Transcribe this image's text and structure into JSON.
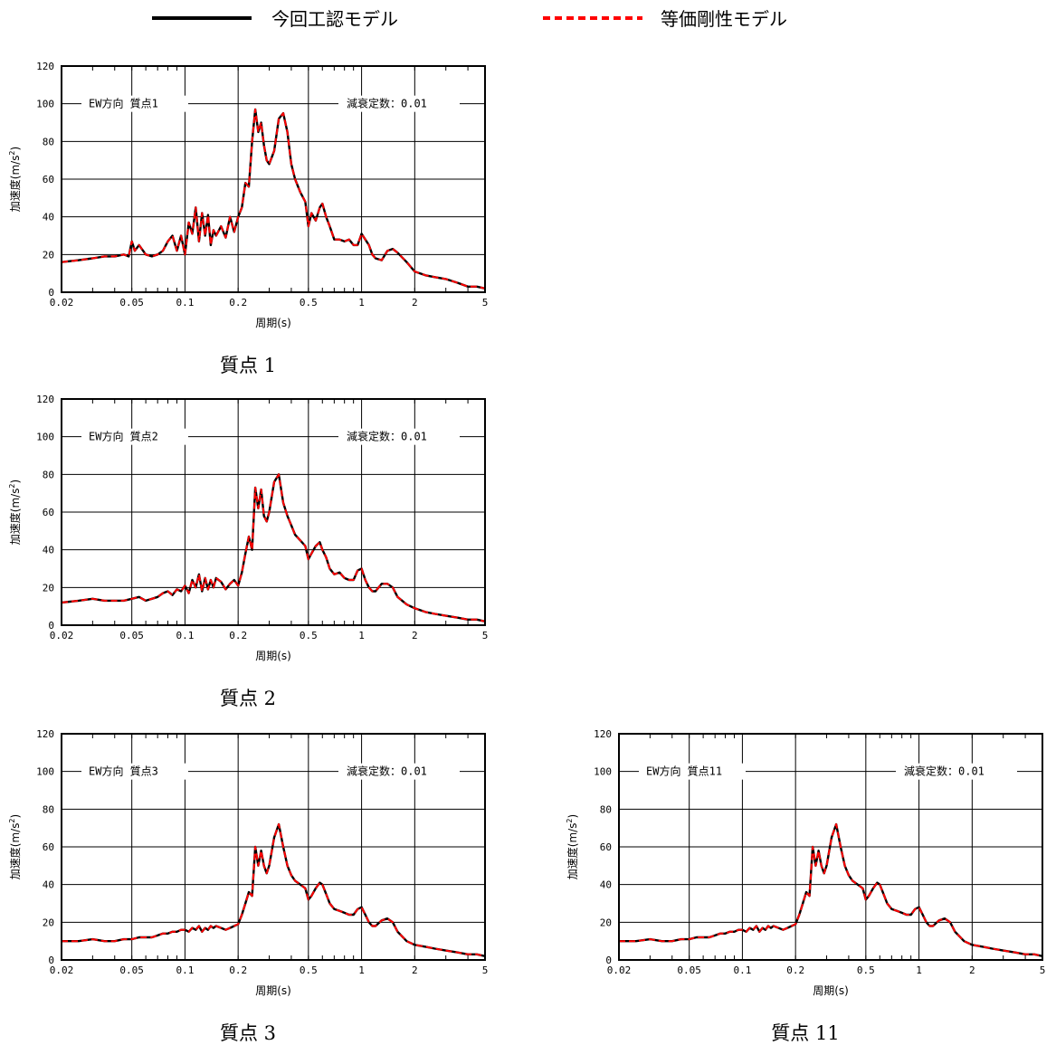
{
  "legend": {
    "model_a": {
      "label": "今回工認モデル",
      "color": "#000000",
      "style": "solid"
    },
    "model_b": {
      "label": "等価剛性モデル",
      "color": "#ff0000",
      "style": "dashed"
    }
  },
  "x_axis": {
    "label": "周期(s)",
    "scale": "log",
    "range": [
      0.02,
      5
    ],
    "ticks": [
      {
        "v": 0.02,
        "t": "0.02"
      },
      {
        "v": 0.05,
        "t": "0.05"
      },
      {
        "v": 0.1,
        "t": "0.1"
      },
      {
        "v": 0.2,
        "t": "0.2"
      },
      {
        "v": 0.5,
        "t": "0.5"
      },
      {
        "v": 1,
        "t": "1"
      },
      {
        "v": 2,
        "t": "2"
      },
      {
        "v": 5,
        "t": "5"
      }
    ]
  },
  "y_axis": {
    "label_main": "加速度(m/s",
    "label_sup": "2",
    "label_close": ")",
    "range": [
      0,
      120
    ],
    "ticks": [
      "0",
      "20",
      "40",
      "60",
      "80",
      "100",
      "120"
    ]
  },
  "chart_data": [
    {
      "type": "line",
      "caption": "質点 1",
      "title_left": "EW方向 質点1",
      "title_right": "減衰定数：0.01",
      "xlabel": "周期(s)",
      "ylabel": "加速度(m/s²)",
      "xscale": "log",
      "xlim": [
        0.02,
        5
      ],
      "ylim": [
        0,
        120
      ],
      "grid": true,
      "x": [
        0.02,
        0.025,
        0.03,
        0.035,
        0.04,
        0.045,
        0.048,
        0.05,
        0.052,
        0.055,
        0.06,
        0.065,
        0.07,
        0.075,
        0.08,
        0.085,
        0.09,
        0.095,
        0.1,
        0.105,
        0.11,
        0.115,
        0.12,
        0.125,
        0.13,
        0.135,
        0.14,
        0.145,
        0.15,
        0.16,
        0.17,
        0.18,
        0.19,
        0.2,
        0.21,
        0.22,
        0.23,
        0.24,
        0.25,
        0.26,
        0.27,
        0.28,
        0.29,
        0.3,
        0.32,
        0.34,
        0.36,
        0.38,
        0.4,
        0.42,
        0.45,
        0.48,
        0.5,
        0.52,
        0.55,
        0.58,
        0.6,
        0.63,
        0.66,
        0.7,
        0.75,
        0.8,
        0.85,
        0.9,
        0.95,
        1.0,
        1.05,
        1.1,
        1.15,
        1.2,
        1.3,
        1.4,
        1.5,
        1.6,
        1.8,
        2.0,
        2.3,
        2.6,
        3.0,
        3.5,
        4.0,
        4.5,
        5.0
      ],
      "y": [
        16,
        17,
        18,
        19,
        19,
        20,
        19,
        27,
        22,
        25,
        20,
        19,
        20,
        22,
        27,
        30,
        22,
        30,
        20,
        37,
        31,
        45,
        27,
        42,
        30,
        41,
        25,
        33,
        30,
        35,
        29,
        40,
        32,
        40,
        45,
        58,
        56,
        80,
        97,
        85,
        90,
        78,
        70,
        68,
        75,
        92,
        95,
        85,
        68,
        60,
        53,
        48,
        35,
        42,
        38,
        45,
        47,
        40,
        35,
        28,
        28,
        27,
        28,
        25,
        25,
        31,
        28,
        25,
        20,
        18,
        17,
        22,
        23,
        21,
        16,
        11,
        9,
        8,
        7,
        5,
        3,
        3,
        2
      ],
      "series": [
        {
          "name": "今回工認モデル"
        },
        {
          "name": "等価剛性モデル"
        }
      ]
    },
    {
      "type": "line",
      "caption": "質点 2",
      "title_left": "EW方向 質点2",
      "title_right": "減衰定数：0.01",
      "xlabel": "周期(s)",
      "ylabel": "加速度(m/s²)",
      "xscale": "log",
      "xlim": [
        0.02,
        5
      ],
      "ylim": [
        0,
        120
      ],
      "grid": true,
      "x": [
        0.02,
        0.025,
        0.03,
        0.035,
        0.04,
        0.045,
        0.05,
        0.055,
        0.06,
        0.065,
        0.07,
        0.075,
        0.08,
        0.085,
        0.09,
        0.095,
        0.1,
        0.105,
        0.11,
        0.115,
        0.12,
        0.125,
        0.13,
        0.135,
        0.14,
        0.145,
        0.15,
        0.16,
        0.17,
        0.18,
        0.19,
        0.2,
        0.21,
        0.22,
        0.23,
        0.24,
        0.25,
        0.26,
        0.27,
        0.28,
        0.29,
        0.3,
        0.32,
        0.34,
        0.36,
        0.38,
        0.4,
        0.42,
        0.45,
        0.48,
        0.5,
        0.52,
        0.55,
        0.58,
        0.6,
        0.63,
        0.66,
        0.7,
        0.75,
        0.8,
        0.85,
        0.9,
        0.95,
        1.0,
        1.05,
        1.1,
        1.15,
        1.2,
        1.3,
        1.4,
        1.5,
        1.6,
        1.8,
        2.0,
        2.3,
        2.6,
        3.0,
        3.5,
        4.0,
        4.5,
        5.0
      ],
      "y": [
        12,
        13,
        14,
        13,
        13,
        13,
        14,
        15,
        13,
        14,
        15,
        17,
        18,
        16,
        19,
        18,
        21,
        17,
        24,
        20,
        27,
        18,
        25,
        19,
        24,
        20,
        25,
        23,
        19,
        22,
        24,
        21,
        28,
        38,
        47,
        40,
        73,
        62,
        72,
        58,
        55,
        60,
        76,
        80,
        65,
        58,
        53,
        48,
        45,
        42,
        35,
        38,
        42,
        44,
        40,
        36,
        30,
        27,
        28,
        25,
        24,
        24,
        29,
        30,
        24,
        20,
        18,
        18,
        22,
        22,
        20,
        15,
        11,
        9,
        7,
        6,
        5,
        4,
        3,
        3,
        2
      ],
      "series": [
        {
          "name": "今回工認モデル"
        },
        {
          "name": "等価剛性モデル"
        }
      ]
    },
    {
      "type": "line",
      "caption": "質点 3",
      "title_left": "EW方向 質点3",
      "title_right": "減衰定数：0.01",
      "xlabel": "周期(s)",
      "ylabel": "加速度(m/s²)",
      "xscale": "log",
      "xlim": [
        0.02,
        5
      ],
      "ylim": [
        0,
        120
      ],
      "grid": true,
      "x": [
        0.02,
        0.025,
        0.03,
        0.035,
        0.04,
        0.045,
        0.05,
        0.055,
        0.06,
        0.065,
        0.07,
        0.075,
        0.08,
        0.085,
        0.09,
        0.095,
        0.1,
        0.105,
        0.11,
        0.115,
        0.12,
        0.125,
        0.13,
        0.135,
        0.14,
        0.145,
        0.15,
        0.16,
        0.17,
        0.18,
        0.19,
        0.2,
        0.21,
        0.22,
        0.23,
        0.24,
        0.25,
        0.26,
        0.27,
        0.28,
        0.29,
        0.3,
        0.32,
        0.34,
        0.36,
        0.38,
        0.4,
        0.42,
        0.45,
        0.48,
        0.5,
        0.52,
        0.55,
        0.58,
        0.6,
        0.63,
        0.66,
        0.7,
        0.75,
        0.8,
        0.85,
        0.9,
        0.95,
        1.0,
        1.05,
        1.1,
        1.15,
        1.2,
        1.3,
        1.4,
        1.5,
        1.6,
        1.8,
        2.0,
        2.3,
        2.6,
        3.0,
        3.5,
        4.0,
        4.5,
        5.0
      ],
      "y": [
        10,
        10,
        11,
        10,
        10,
        11,
        11,
        12,
        12,
        12,
        13,
        14,
        14,
        15,
        15,
        16,
        16,
        15,
        17,
        16,
        18,
        15,
        17,
        16,
        18,
        17,
        18,
        17,
        16,
        17,
        18,
        19,
        24,
        30,
        36,
        34,
        60,
        50,
        58,
        50,
        46,
        50,
        65,
        72,
        60,
        50,
        45,
        42,
        40,
        38,
        32,
        34,
        38,
        41,
        40,
        35,
        30,
        27,
        26,
        25,
        24,
        24,
        27,
        28,
        24,
        20,
        18,
        18,
        21,
        22,
        20,
        15,
        10,
        8,
        7,
        6,
        5,
        4,
        3,
        3,
        2
      ],
      "series": [
        {
          "name": "今回工認モデル"
        },
        {
          "name": "等価剛性モデル"
        }
      ]
    },
    {
      "type": "line",
      "caption": "質点 11",
      "title_left": "EW方向 質点11",
      "title_right": "減衰定数：0.01",
      "xlabel": "周期(s)",
      "ylabel": "加速度(m/s²)",
      "xscale": "log",
      "xlim": [
        0.02,
        5
      ],
      "ylim": [
        0,
        120
      ],
      "grid": true,
      "x": [
        0.02,
        0.025,
        0.03,
        0.035,
        0.04,
        0.045,
        0.05,
        0.055,
        0.06,
        0.065,
        0.07,
        0.075,
        0.08,
        0.085,
        0.09,
        0.095,
        0.1,
        0.105,
        0.11,
        0.115,
        0.12,
        0.125,
        0.13,
        0.135,
        0.14,
        0.145,
        0.15,
        0.16,
        0.17,
        0.18,
        0.19,
        0.2,
        0.21,
        0.22,
        0.23,
        0.24,
        0.25,
        0.26,
        0.27,
        0.28,
        0.29,
        0.3,
        0.32,
        0.34,
        0.36,
        0.38,
        0.4,
        0.42,
        0.45,
        0.48,
        0.5,
        0.52,
        0.55,
        0.58,
        0.6,
        0.63,
        0.66,
        0.7,
        0.75,
        0.8,
        0.85,
        0.9,
        0.95,
        1.0,
        1.05,
        1.1,
        1.15,
        1.2,
        1.3,
        1.4,
        1.5,
        1.6,
        1.8,
        2.0,
        2.3,
        2.6,
        3.0,
        3.5,
        4.0,
        4.5,
        5.0
      ],
      "y": [
        10,
        10,
        11,
        10,
        10,
        11,
        11,
        12,
        12,
        12,
        13,
        14,
        14,
        15,
        15,
        16,
        16,
        15,
        17,
        16,
        18,
        15,
        17,
        16,
        18,
        17,
        18,
        17,
        16,
        17,
        18,
        19,
        24,
        30,
        36,
        34,
        60,
        50,
        58,
        50,
        46,
        50,
        65,
        72,
        60,
        50,
        45,
        42,
        40,
        38,
        32,
        34,
        38,
        41,
        40,
        35,
        30,
        27,
        26,
        25,
        24,
        24,
        27,
        28,
        24,
        20,
        18,
        18,
        21,
        22,
        20,
        15,
        10,
        8,
        7,
        6,
        5,
        4,
        3,
        3,
        2
      ],
      "series": [
        {
          "name": "今回工認モデル"
        },
        {
          "name": "等価剛性モデル"
        }
      ]
    }
  ]
}
